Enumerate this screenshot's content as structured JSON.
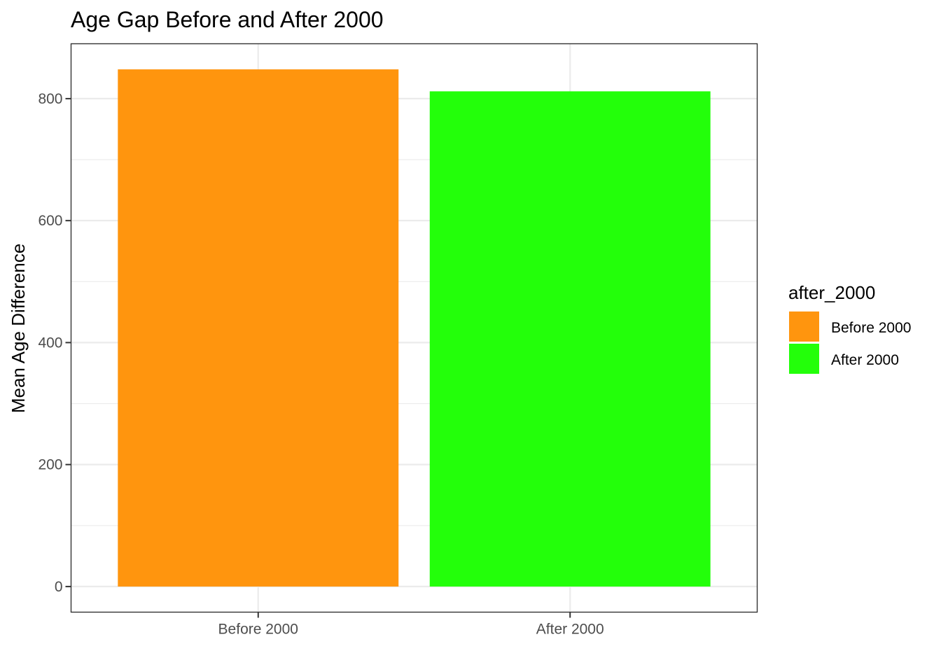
{
  "chart_data": {
    "type": "bar",
    "title": "Age Gap Before and After 2000",
    "xlabel": "",
    "ylabel": "Mean Age Difference",
    "categories": [
      "Before 2000",
      "After 2000"
    ],
    "values": [
      848,
      812
    ],
    "colors": [
      "#FF950E",
      "#23FF0A"
    ],
    "ylim": [
      -42,
      890
    ],
    "yticks": [
      0,
      200,
      400,
      600,
      800
    ],
    "yticks_minor": [
      100,
      300,
      500,
      700
    ],
    "grid": true,
    "legend": {
      "title": "after_2000",
      "placement": "right",
      "items": [
        {
          "label": "Before 2000",
          "color": "#FF950E"
        },
        {
          "label": "After 2000",
          "color": "#23FF0A"
        }
      ]
    }
  }
}
